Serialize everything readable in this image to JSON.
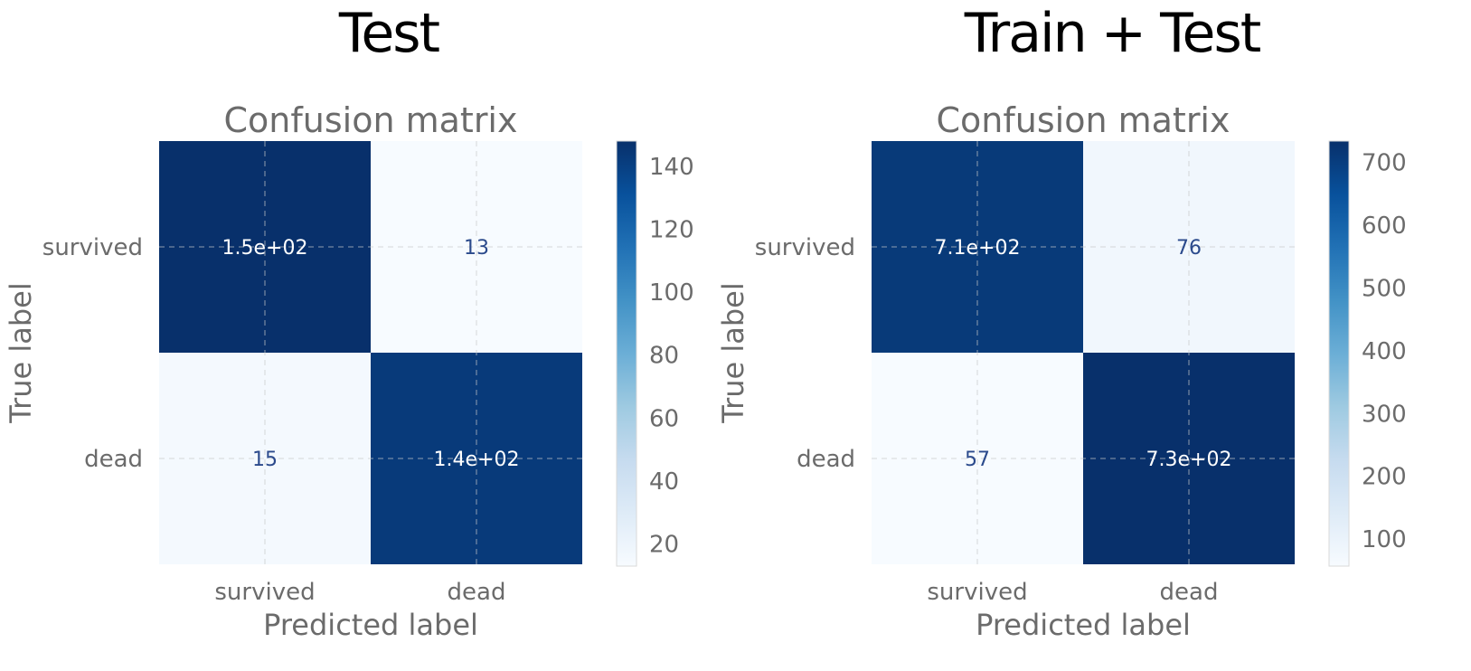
{
  "panels": {
    "left_title": "Test",
    "right_title": "Train + Test"
  },
  "colors": {
    "cmap": [
      "#f7fbff",
      "#deebf7",
      "#c6dbef",
      "#9ecae1",
      "#6baed6",
      "#4292c6",
      "#2171b5",
      "#08519c",
      "#08306b"
    ],
    "axis_text": "#6b6b6b",
    "dark_cell_text": "#ffffff",
    "light_cell_text": "#2b4a8c"
  },
  "chart_data": [
    {
      "type": "heatmap",
      "title": "Confusion matrix",
      "xlabel": "Predicted label",
      "ylabel": "True label",
      "x_categories": [
        "survived",
        "dead"
      ],
      "y_categories": [
        "survived",
        "dead"
      ],
      "values": [
        [
          148,
          13
        ],
        [
          15,
          143
        ]
      ],
      "cell_labels": [
        [
          "1.5e+02",
          "13"
        ],
        [
          "15",
          "1.4e+02"
        ]
      ],
      "colorbar": {
        "range": [
          13,
          148
        ],
        "ticks": [
          20,
          40,
          60,
          80,
          100,
          120,
          140
        ]
      },
      "grid": true
    },
    {
      "type": "heatmap",
      "title": "Confusion matrix",
      "xlabel": "Predicted label",
      "ylabel": "True label",
      "x_categories": [
        "survived",
        "dead"
      ],
      "y_categories": [
        "survived",
        "dead"
      ],
      "values": [
        [
          709,
          76
        ],
        [
          57,
          734
        ]
      ],
      "cell_labels": [
        [
          "7.1e+02",
          "76"
        ],
        [
          "57",
          "7.3e+02"
        ]
      ],
      "colorbar": {
        "range": [
          57,
          734
        ],
        "ticks": [
          100,
          200,
          300,
          400,
          500,
          600,
          700
        ]
      },
      "grid": true
    }
  ]
}
